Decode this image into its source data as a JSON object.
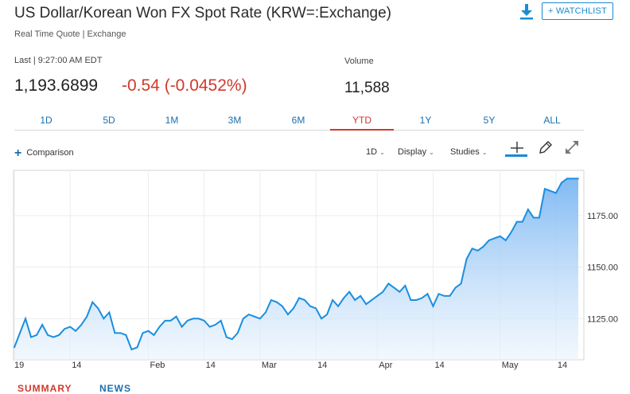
{
  "header": {
    "title": "US Dollar/Korean Won FX Spot Rate (KRW=:Exchange)",
    "subtitle": "Real Time Quote | Exchange",
    "download_icon": "download-icon",
    "watchlist_label": "+ WATCHLIST"
  },
  "quote": {
    "last_label": "Last | 9:27:00 AM EDT",
    "price": "1,193.6899",
    "change": "-0.54 (-0.0452%)",
    "volume_label": "Volume",
    "volume": "11,588",
    "change_color": "#d0392b"
  },
  "tabs": [
    {
      "label": "1D",
      "active": false
    },
    {
      "label": "5D",
      "active": false
    },
    {
      "label": "1M",
      "active": false
    },
    {
      "label": "3M",
      "active": false
    },
    {
      "label": "6M",
      "active": false
    },
    {
      "label": "YTD",
      "active": true
    },
    {
      "label": "1Y",
      "active": false
    },
    {
      "label": "5Y",
      "active": false
    },
    {
      "label": "ALL",
      "active": false
    }
  ],
  "toolbar": {
    "comparison_label": "Comparison",
    "interval_label": "1D",
    "display_label": "Display",
    "studies_label": "Studies",
    "crosshair_icon": "crosshair-icon",
    "draw_icon": "pencil-icon",
    "expand_icon": "expand-icon"
  },
  "bottom_tabs": {
    "summary_label": "SUMMARY",
    "news_label": "NEWS"
  },
  "chart_data": {
    "type": "area",
    "ylim": [
      1105,
      1197
    ],
    "y_ticks": [
      1125,
      1150,
      1175
    ],
    "y_tick_labels": [
      "1125.00",
      "1150.00",
      "1175.00"
    ],
    "x_tick_labels": [
      "19",
      "14",
      "Feb",
      "14",
      "Mar",
      "14",
      "Apr",
      "14",
      "May",
      "14"
    ],
    "x_tick_index": [
      0,
      10,
      24,
      34,
      44,
      54,
      65,
      75,
      87,
      97
    ],
    "series": [
      {
        "values": [
          1111,
          1118,
          1125,
          1116,
          1117,
          1122,
          1117,
          1116,
          1117,
          1120,
          1121,
          1119,
          1122,
          1126,
          1133,
          1130,
          1125,
          1128,
          1118,
          1118,
          1117,
          1110,
          1111,
          1118,
          1119,
          1117,
          1121,
          1124,
          1124,
          1126,
          1121,
          1124,
          1125,
          1125,
          1124,
          1121,
          1122,
          1124,
          1116,
          1115,
          1118,
          1125,
          1127,
          1126,
          1125,
          1128,
          1134,
          1133,
          1131,
          1127,
          1130,
          1135,
          1134,
          1131,
          1130,
          1125,
          1127,
          1134,
          1131,
          1135,
          1138,
          1134,
          1136,
          1132,
          1134,
          1136,
          1138,
          1142,
          1140,
          1138,
          1141,
          1134,
          1134,
          1135,
          1137,
          1131,
          1137,
          1136,
          1136,
          1140,
          1142,
          1154,
          1159,
          1158,
          1160,
          1163,
          1164,
          1165,
          1163,
          1167,
          1172,
          1172,
          1178,
          1174,
          1174,
          1188,
          1187,
          1186,
          1191,
          1193,
          1193,
          1193
        ],
        "color": "#1a8ee0"
      }
    ],
    "grid": true
  }
}
